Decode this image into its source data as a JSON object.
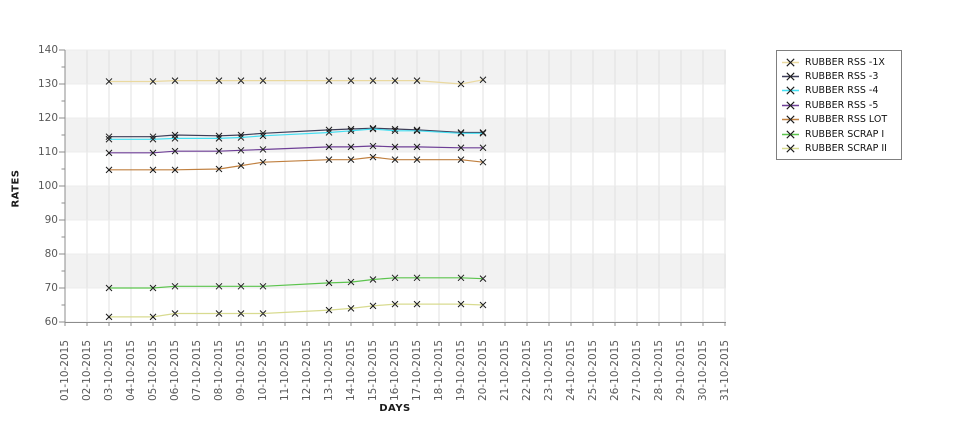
{
  "chart": {
    "ylabel": "RATES",
    "xlabel": "DAYS"
  },
  "chart_data": {
    "type": "line",
    "title": "",
    "xlabel": "DAYS",
    "ylabel": "RATES",
    "ylim": [
      60,
      140
    ],
    "ytick_major_step": 10,
    "ytick_minor_step": 5,
    "grid": true,
    "band_fill_color": "#f2f2f2",
    "grid_color": "#e0e0e0",
    "axis_color": "#8c8c8c",
    "marker": "x",
    "marker_color": "#1c1c1c",
    "legend_position": "right-outside",
    "x_labels": [
      "01-10-2015",
      "02-10-2015",
      "03-10-2015",
      "04-10-2015",
      "05-10-2015",
      "06-10-2015",
      "07-10-2015",
      "08-10-2015",
      "09-10-2015",
      "10-10-2015",
      "11-10-2015",
      "12-10-2015",
      "13-10-2015",
      "14-10-2015",
      "15-10-2015",
      "16-10-2015",
      "17-10-2015",
      "18-10-2015",
      "19-10-2015",
      "20-10-2015",
      "21-10-2015",
      "22-10-2015",
      "23-10-2015",
      "24-10-2015",
      "25-10-2015",
      "26-10-2015",
      "27-10-2015",
      "28-10-2015",
      "29-10-2015",
      "30-10-2015",
      "31-10-2015"
    ],
    "data_days": [
      3,
      5,
      6,
      8,
      9,
      10,
      13,
      14,
      15,
      16,
      17,
      19,
      20
    ],
    "series": [
      {
        "name": "RUBBER RSS -1X",
        "color": "#ead9a0",
        "values": [
          130.75,
          130.75,
          131,
          131,
          131,
          131,
          131,
          131,
          131,
          131,
          131,
          130,
          131.25
        ]
      },
      {
        "name": "RUBBER RSS -3",
        "color": "#3e3e58",
        "values": [
          114.5,
          114.5,
          115,
          114.75,
          115,
          115.5,
          116.5,
          116.75,
          117,
          116.75,
          116.5,
          115.75,
          115.75
        ]
      },
      {
        "name": "RUBBER RSS -4",
        "color": "#45dff2",
        "values": [
          113.75,
          113.75,
          114,
          114,
          114.25,
          114.75,
          115.75,
          116.25,
          116.75,
          116.25,
          116.25,
          115.5,
          115.5
        ]
      },
      {
        "name": "RUBBER RSS -5",
        "color": "#6e3f96",
        "values": [
          109.75,
          109.75,
          110.25,
          110.25,
          110.5,
          110.75,
          111.5,
          111.5,
          111.75,
          111.5,
          111.5,
          111.25,
          111.25
        ]
      },
      {
        "name": "RUBBER RSS LOT",
        "color": "#c08040",
        "values": [
          104.75,
          104.75,
          104.75,
          105,
          106,
          107,
          107.75,
          107.75,
          108.5,
          107.75,
          107.75,
          107.75,
          107
        ]
      },
      {
        "name": "RUBBER SCRAP I",
        "color": "#5cc44e",
        "values": [
          70,
          70,
          70.5,
          70.5,
          70.5,
          70.5,
          71.5,
          71.75,
          72.5,
          73,
          73,
          73,
          72.75
        ]
      },
      {
        "name": "RUBBER SCRAP II",
        "color": "#d8db90",
        "values": [
          61.5,
          61.5,
          62.5,
          62.5,
          62.5,
          62.5,
          63.5,
          64,
          64.75,
          65.25,
          65.25,
          65.25,
          65
        ]
      }
    ]
  }
}
